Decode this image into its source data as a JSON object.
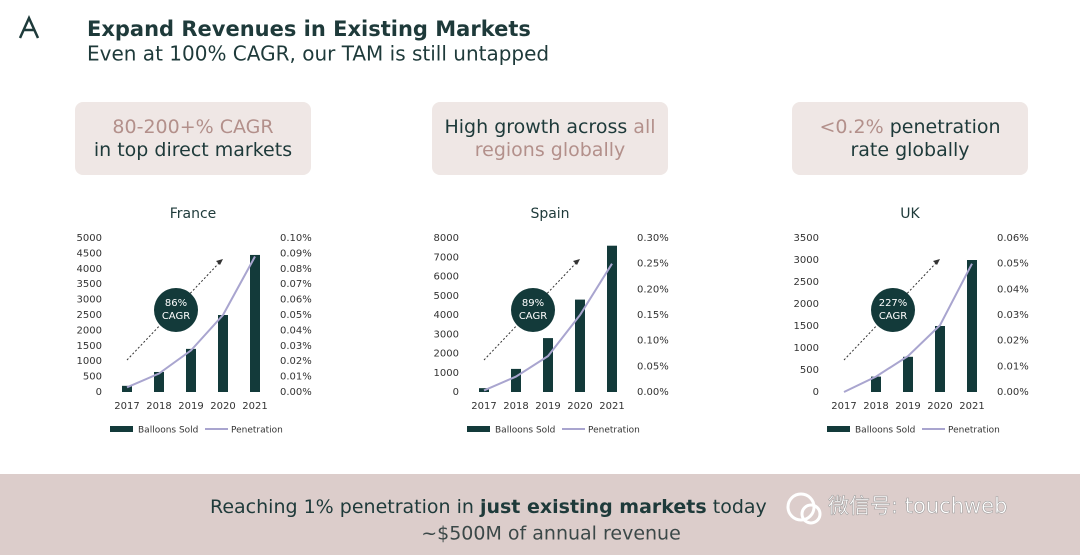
{
  "header": {
    "title": "Expand Revenues in Existing Markets",
    "subtitle": "Even at 100% CAGR, our TAM is still untapped"
  },
  "callouts": [
    {
      "lines": [
        [
          {
            "text": "80-200+% CAGR",
            "accent": true
          }
        ],
        [
          {
            "text": "in top direct markets",
            "accent": false
          }
        ]
      ]
    },
    {
      "lines": [
        [
          {
            "text": "High growth across ",
            "accent": false
          },
          {
            "text": "all",
            "accent": true
          }
        ],
        [
          {
            "text": "regions globally",
            "accent": true
          }
        ]
      ]
    },
    {
      "lines": [
        [
          {
            "text": "<0.2%",
            "accent": true
          },
          {
            "text": " penetration",
            "accent": false
          }
        ],
        [
          {
            "text": "rate globally",
            "accent": false
          }
        ]
      ]
    }
  ],
  "accent_color": "#b3908b",
  "chart_data": [
    {
      "type": "bar",
      "title": "France",
      "categories": [
        "2017",
        "2018",
        "2019",
        "2020",
        "2021"
      ],
      "series": [
        {
          "name": "Balloons Sold",
          "type": "bar",
          "color": "#133a3a",
          "values": [
            200,
            650,
            1400,
            2500,
            4450
          ]
        },
        {
          "name": "Penetration",
          "type": "line",
          "axis": "y2",
          "color": "#a9a5cf",
          "values": [
            0.003,
            0.012,
            0.027,
            0.05,
            0.088
          ]
        }
      ],
      "ylim": [
        0,
        5000
      ],
      "yticks": [
        0,
        500,
        1000,
        1500,
        2000,
        2500,
        3000,
        3500,
        4000,
        4500,
        5000
      ],
      "y2lim": [
        0,
        0.1
      ],
      "y2ticks": [
        {
          "value": 0,
          "label": "0.00%"
        },
        {
          "value": 0.01,
          "label": "0.01%"
        },
        {
          "value": 0.02,
          "label": "0.02%"
        },
        {
          "value": 0.03,
          "label": "0.03%"
        },
        {
          "value": 0.04,
          "label": "0.04%"
        },
        {
          "value": 0.05,
          "label": "0.05%"
        },
        {
          "value": 0.06,
          "label": "0.06%"
        },
        {
          "value": 0.07,
          "label": "0.07%"
        },
        {
          "value": 0.08,
          "label": "0.08%"
        },
        {
          "value": 0.09,
          "label": "0.09%"
        },
        {
          "value": 0.1,
          "label": "0.10%"
        }
      ],
      "annotation": [
        "86%",
        "CAGR"
      ]
    },
    {
      "type": "bar",
      "title": "Spain",
      "categories": [
        "2017",
        "2018",
        "2019",
        "2020",
        "2021"
      ],
      "series": [
        {
          "name": "Balloons Sold",
          "type": "bar",
          "color": "#133a3a",
          "values": [
            200,
            1200,
            2800,
            4800,
            7600
          ]
        },
        {
          "name": "Penetration",
          "type": "line",
          "axis": "y2",
          "color": "#a9a5cf",
          "values": [
            0.003,
            0.03,
            0.07,
            0.15,
            0.25
          ]
        }
      ],
      "ylim": [
        0,
        8000
      ],
      "yticks": [
        0,
        1000,
        2000,
        3000,
        4000,
        5000,
        6000,
        7000,
        8000
      ],
      "y2lim": [
        0,
        0.3
      ],
      "y2ticks": [
        {
          "value": 0,
          "label": "0.00%"
        },
        {
          "value": 0.05,
          "label": "0.05%"
        },
        {
          "value": 0.1,
          "label": "0.10%"
        },
        {
          "value": 0.15,
          "label": "0.15%"
        },
        {
          "value": 0.2,
          "label": "0.20%"
        },
        {
          "value": 0.25,
          "label": "0.25%"
        },
        {
          "value": 0.3,
          "label": "0.30%"
        }
      ],
      "annotation": [
        "89%",
        "CAGR"
      ]
    },
    {
      "type": "bar",
      "title": "UK",
      "categories": [
        "2017",
        "2018",
        "2019",
        "2020",
        "2021"
      ],
      "series": [
        {
          "name": "Balloons Sold",
          "type": "bar",
          "color": "#133a3a",
          "values": [
            0,
            350,
            800,
            1500,
            3000
          ]
        },
        {
          "name": "Penetration",
          "type": "line",
          "axis": "y2",
          "color": "#a9a5cf",
          "values": [
            0,
            0.006,
            0.014,
            0.026,
            0.05
          ]
        }
      ],
      "ylim": [
        0,
        3500
      ],
      "yticks": [
        0,
        500,
        1000,
        1500,
        2000,
        2500,
        3000,
        3500
      ],
      "y2lim": [
        0,
        0.06
      ],
      "y2ticks": [
        {
          "value": 0,
          "label": "0.00%"
        },
        {
          "value": 0.01,
          "label": "0.01%"
        },
        {
          "value": 0.02,
          "label": "0.02%"
        },
        {
          "value": 0.03,
          "label": "0.03%"
        },
        {
          "value": 0.04,
          "label": "0.04%"
        },
        {
          "value": 0.05,
          "label": "0.05%"
        },
        {
          "value": 0.06,
          "label": "0.06%"
        }
      ],
      "annotation": [
        "227%",
        "CAGR"
      ]
    }
  ],
  "footer": {
    "line1": [
      {
        "text": "Reaching 1% penetration in ",
        "bold": false
      },
      {
        "text": "just existing markets",
        "bold": true
      },
      {
        "text": " today ",
        "bold": false
      }
    ],
    "line2": "~$500M of annual revenue"
  },
  "watermark": "微信号: touchweb"
}
